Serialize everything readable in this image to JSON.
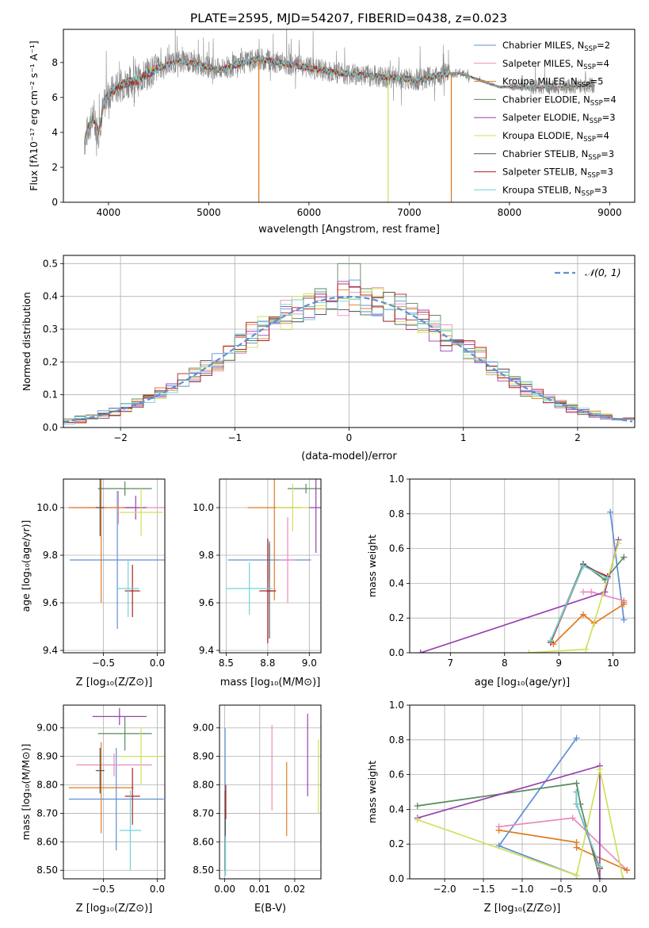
{
  "title": "PLATE=2595, MJD=54207, FIBERID=0438, z=0.023",
  "colors": {
    "chabrier_miles": "#5f8fd6",
    "salpeter_miles": "#e98bbb",
    "kroupa_miles": "#e07b22",
    "chabrier_elodie": "#5a8a5e",
    "salpeter_elodie": "#9a3fb0",
    "kroupa_elodie": "#cfe05a",
    "chabrier_stelib": "#555555",
    "salpeter_stelib": "#b51c1c",
    "kroupa_stelib": "#6fd3d8",
    "grid": "#b0b0b0",
    "normal": "#5f8fd6"
  },
  "chart_data": [
    {
      "id": "spectrum",
      "type": "line",
      "xlabel": "wavelength [Angstrom, rest frame]",
      "ylabel": "Flux [fλ10⁻¹⁷ erg cm⁻² s⁻¹ A⁻¹]",
      "xlim": [
        3550,
        9250
      ],
      "ylim": [
        0,
        9.9
      ],
      "xticks": [
        4000,
        5000,
        6000,
        7000,
        8000,
        9000
      ],
      "yticks": [
        0,
        2,
        4,
        6,
        8
      ],
      "grid": false,
      "legend_position": "top-right",
      "legend": [
        {
          "label": "Chabrier MILES, N",
          "sub": "SSP",
          "n": "=2",
          "color": "#5f8fd6"
        },
        {
          "label": "Salpeter MILES, N",
          "sub": "SSP",
          "n": "=4",
          "color": "#e98bbb"
        },
        {
          "label": "Kroupa MILES, N",
          "sub": "SSP",
          "n": "=5",
          "color": "#e07b22"
        },
        {
          "label": "Chabrier ELODIE, N",
          "sub": "SSP",
          "n": "=4",
          "color": "#5a8a5e"
        },
        {
          "label": "Salpeter ELODIE, N",
          "sub": "SSP",
          "n": "=3",
          "color": "#9a3fb0"
        },
        {
          "label": "Kroupa ELODIE, N",
          "sub": "SSP",
          "n": "=4",
          "color": "#cfe05a"
        },
        {
          "label": "Chabrier STELIB, N",
          "sub": "SSP",
          "n": "=3",
          "color": "#555555"
        },
        {
          "label": "Salpeter STELIB, N",
          "sub": "SSP",
          "n": "=3",
          "color": "#b51c1c"
        },
        {
          "label": "Kroupa STELIB, N",
          "sub": "SSP",
          "n": "=3",
          "color": "#6fd3d8"
        }
      ],
      "model_continuum": {
        "x": [
          3760,
          3800,
          3850,
          3900,
          3950,
          4000,
          4100,
          4200,
          4300,
          4400,
          4500,
          4700,
          4900,
          5100,
          5300,
          5500,
          5700,
          5900,
          6100,
          6300,
          6500,
          6700,
          6900,
          7100,
          7300,
          7500,
          7700,
          7900,
          8200,
          8500,
          8800
        ],
        "y": [
          3.4,
          4.3,
          4.8,
          4.0,
          5.5,
          6.2,
          6.6,
          6.9,
          7.0,
          7.4,
          7.7,
          8.1,
          7.9,
          7.6,
          7.9,
          8.2,
          8.0,
          7.8,
          7.6,
          7.4,
          7.3,
          7.2,
          7.1,
          7.0,
          7.3,
          7.4,
          7.0,
          6.6,
          6.6,
          6.6,
          6.7
        ]
      },
      "model_drops": [
        {
          "x": 5500,
          "color": "#e07b22"
        },
        {
          "x": 6790,
          "color": "#cfe05a"
        },
        {
          "x": 7420,
          "color": "#e07b22"
        }
      ]
    },
    {
      "id": "residuals",
      "type": "histogram",
      "xlabel": "(data-model)/error",
      "ylabel": "Normed distribution",
      "xlim": [
        -2.5,
        2.5
      ],
      "ylim": [
        0,
        0.525
      ],
      "xticks": [
        -2,
        -1,
        0,
        1,
        2
      ],
      "yticks": [
        0.0,
        0.1,
        0.2,
        0.3,
        0.4,
        0.5
      ],
      "grid": true,
      "legend_position": "top-right",
      "legend": [
        {
          "label": "𝒩(0, 1)",
          "style": "dashed"
        }
      ],
      "normal_curve": {
        "mean": 0,
        "sigma": 1
      }
    },
    {
      "id": "age_vs_Z",
      "type": "errorbar",
      "xlabel": "Z [log₁₀(Z/Z⊙)]",
      "ylabel": "age  [log₁₀(age/yr)]",
      "xlim": [
        -0.87,
        0.07
      ],
      "ylim": [
        9.39,
        10.12
      ],
      "xticks": [
        -0.5,
        0.0
      ],
      "yticks": [
        9.4,
        9.6,
        9.8,
        10.0
      ],
      "points": [
        {
          "model": "chabrier_miles",
          "x": -0.37,
          "y": 9.78,
          "xerr": 0.44,
          "yerr": 0.29
        },
        {
          "model": "salpeter_miles",
          "x": -0.36,
          "y": 10.0,
          "xerr": 0.46,
          "yerr": 0.07
        },
        {
          "model": "kroupa_miles",
          "x": -0.52,
          "y": 10.0,
          "xerr": 0.3,
          "yerr": 0.4
        },
        {
          "model": "chabrier_elodie",
          "x": -0.3,
          "y": 10.08,
          "xerr": 0.25,
          "yerr": 0.03
        },
        {
          "model": "salpeter_elodie",
          "x": -0.2,
          "y": 10.0,
          "xerr": 0.1,
          "yerr": 0.05
        },
        {
          "model": "kroupa_elodie",
          "x": -0.15,
          "y": 9.98,
          "xerr": 0.2,
          "yerr": 0.1
        },
        {
          "model": "chabrier_stelib",
          "x": -0.53,
          "y": 10.0,
          "xerr": 0.04,
          "yerr": 0.12
        },
        {
          "model": "salpeter_stelib",
          "x": -0.23,
          "y": 9.65,
          "xerr": 0.07,
          "yerr": 0.11
        },
        {
          "model": "kroupa_stelib",
          "x": -0.27,
          "y": 9.66,
          "xerr": 0.1,
          "yerr": 0.12
        }
      ]
    },
    {
      "id": "age_vs_mass",
      "type": "errorbar",
      "xlabel": "mass [log₁₀(M/M⊙)]",
      "ylabel": "",
      "xlim": [
        8.46,
        9.07
      ],
      "ylim": [
        9.39,
        10.12
      ],
      "xticks": [
        8.5,
        8.75,
        9.0
      ],
      "yticks": [
        9.4,
        9.6,
        9.8,
        10.0
      ],
      "points": [
        {
          "model": "chabrier_miles",
          "x": 8.76,
          "y": 9.78,
          "xerr": 0.25,
          "yerr": 0.08
        },
        {
          "model": "salpeter_miles",
          "x": 8.87,
          "y": 9.78,
          "xerr": 0.05,
          "yerr": 0.18
        },
        {
          "model": "kroupa_miles",
          "x": 8.79,
          "y": 10.0,
          "xerr": 0.16,
          "yerr": 0.39
        },
        {
          "model": "chabrier_elodie",
          "x": 8.98,
          "y": 10.08,
          "xerr": 0.11,
          "yerr": 0.02
        },
        {
          "model": "salpeter_elodie",
          "x": 9.04,
          "y": 10.0,
          "xerr": 0.05,
          "yerr": 0.19
        },
        {
          "model": "kroupa_elodie",
          "x": 8.9,
          "y": 10.0,
          "xerr": 0.1,
          "yerr": 0.1
        },
        {
          "model": "chabrier_stelib",
          "x": 8.76,
          "y": 9.65,
          "xerr": 0.02,
          "yerr": 0.2
        },
        {
          "model": "salpeter_stelib",
          "x": 8.75,
          "y": 9.65,
          "xerr": 0.05,
          "yerr": 0.22
        },
        {
          "model": "kroupa_stelib",
          "x": 8.64,
          "y": 9.66,
          "xerr": 0.14,
          "yerr": 0.11
        }
      ]
    },
    {
      "id": "weight_vs_age",
      "type": "line",
      "xlabel": "age  [log₁₀(age/yr)]",
      "ylabel": "mass weight",
      "xlim": [
        6.25,
        10.4
      ],
      "ylim": [
        0,
        1.0
      ],
      "xticks": [
        7,
        8,
        9,
        10
      ],
      "yticks": [
        0.0,
        0.2,
        0.4,
        0.6,
        0.8,
        1.0
      ],
      "grid": true,
      "series": [
        {
          "model": "chabrier_miles",
          "x": [
            9.95,
            10.2
          ],
          "y": [
            0.81,
            0.19
          ]
        },
        {
          "model": "salpeter_miles",
          "x": [
            9.45,
            9.6,
            10.2
          ],
          "y": [
            0.35,
            0.35,
            0.3
          ]
        },
        {
          "model": "kroupa_miles",
          "x": [
            8.9,
            9.45,
            9.65,
            10.2,
            10.2
          ],
          "y": [
            0.05,
            0.22,
            0.17,
            0.28,
            0.29
          ]
        },
        {
          "model": "chabrier_elodie",
          "x": [
            8.85,
            9.45,
            9.85,
            10.2
          ],
          "y": [
            0.07,
            0.51,
            0.42,
            0.55
          ]
        },
        {
          "model": "salpeter_elodie",
          "x": [
            6.45,
            9.85,
            10.1
          ],
          "y": [
            0.0,
            0.35,
            0.65
          ]
        },
        {
          "model": "kroupa_elodie",
          "x": [
            8.45,
            9.5,
            10.1
          ],
          "y": [
            0.0,
            0.02,
            0.63
          ]
        },
        {
          "model": "chabrier_stelib",
          "x": [
            8.85,
            9.45,
            9.9
          ],
          "y": [
            0.06,
            0.51,
            0.43
          ]
        },
        {
          "model": "salpeter_stelib",
          "x": [
            8.85,
            9.45,
            9.9
          ],
          "y": [
            0.06,
            0.5,
            0.44
          ]
        },
        {
          "model": "kroupa_stelib",
          "x": [
            8.85,
            9.45,
            9.9
          ],
          "y": [
            0.07,
            0.5,
            0.43
          ]
        }
      ]
    },
    {
      "id": "mass_vs_Z",
      "type": "errorbar",
      "xlabel": "Z [log₁₀(Z/Z⊙)]",
      "ylabel": "mass [log₁₀(M/M⊙)]",
      "xlim": [
        -0.87,
        0.07
      ],
      "ylim": [
        8.47,
        9.08
      ],
      "xticks": [
        -0.5,
        0.0
      ],
      "yticks": [
        8.5,
        8.6,
        8.7,
        8.8,
        8.9,
        9.0
      ],
      "points": [
        {
          "model": "chabrier_miles",
          "x": -0.38,
          "y": 8.75,
          "xerr": 0.44,
          "yerr": 0.18
        },
        {
          "model": "salpeter_miles",
          "x": -0.4,
          "y": 8.87,
          "xerr": 0.35,
          "yerr": 0.04
        },
        {
          "model": "kroupa_miles",
          "x": -0.52,
          "y": 8.79,
          "xerr": 0.3,
          "yerr": 0.16
        },
        {
          "model": "chabrier_elodie",
          "x": -0.3,
          "y": 8.98,
          "xerr": 0.25,
          "yerr": 0.06
        },
        {
          "model": "salpeter_elodie",
          "x": -0.35,
          "y": 9.04,
          "xerr": 0.25,
          "yerr": 0.03
        },
        {
          "model": "kroupa_elodie",
          "x": -0.15,
          "y": 8.9,
          "xerr": 0.2,
          "yerr": 0.1
        },
        {
          "model": "chabrier_stelib",
          "x": -0.53,
          "y": 8.85,
          "xerr": 0.04,
          "yerr": 0.08
        },
        {
          "model": "salpeter_stelib",
          "x": -0.23,
          "y": 8.76,
          "xerr": 0.07,
          "yerr": 0.1
        },
        {
          "model": "kroupa_stelib",
          "x": -0.25,
          "y": 8.64,
          "xerr": 0.1,
          "yerr": 0.14
        }
      ]
    },
    {
      "id": "mass_vs_ebv",
      "type": "errorbar",
      "xlabel": "E(B-V)",
      "ylabel": "",
      "xlim": [
        -0.0015,
        0.0275
      ],
      "ylim": [
        8.47,
        9.08
      ],
      "xticks": [
        0.0,
        0.01,
        0.02
      ],
      "yticks": [
        8.5,
        8.6,
        8.7,
        8.8,
        8.9,
        9.0
      ],
      "points": [
        {
          "model": "chabrier_miles",
          "x": 0.0001,
          "y": 8.75,
          "xerr": 0,
          "yerr": 0.25
        },
        {
          "model": "salpeter_miles",
          "x": 0.0135,
          "y": 8.86,
          "xerr": 0,
          "yerr": 0.15
        },
        {
          "model": "kroupa_miles",
          "x": 0.0177,
          "y": 8.75,
          "xerr": 0,
          "yerr": 0.13
        },
        {
          "model": "chabrier_elodie",
          "x": 0.0002,
          "y": 8.6,
          "xerr": 0,
          "yerr": 0.12
        },
        {
          "model": "salpeter_elodie",
          "x": 0.0237,
          "y": 8.905,
          "xerr": 0,
          "yerr": 0.145
        },
        {
          "model": "kroupa_elodie",
          "x": 0.0268,
          "y": 8.83,
          "xerr": 0,
          "yerr": 0.13
        },
        {
          "model": "chabrier_stelib",
          "x": 0.0001,
          "y": 8.64,
          "xerr": 0,
          "yerr": 0.14
        },
        {
          "model": "salpeter_stelib",
          "x": 0.0003,
          "y": 8.74,
          "xerr": 0,
          "yerr": 0.06
        },
        {
          "model": "kroupa_stelib",
          "x": 0.0002,
          "y": 8.55,
          "xerr": 0,
          "yerr": 0.07
        }
      ]
    },
    {
      "id": "weight_vs_Z",
      "type": "line",
      "xlabel": "Z [log₁₀(Z/Z⊙)]",
      "ylabel": "mass weight",
      "xlim": [
        -2.45,
        0.45
      ],
      "ylim": [
        0,
        1.0
      ],
      "xticks": [
        -2.0,
        -1.5,
        -1.0,
        -0.5,
        0.0
      ],
      "yticks": [
        0.0,
        0.2,
        0.4,
        0.6,
        0.8,
        1.0
      ],
      "grid": true,
      "series": [
        {
          "model": "chabrier_miles",
          "x": [
            -0.3,
            -1.3,
            -0.3
          ],
          "y": [
            0.81,
            0.19,
            0.02
          ]
        },
        {
          "model": "salpeter_miles",
          "x": [
            -1.3,
            -0.35,
            0.35
          ],
          "y": [
            0.3,
            0.35,
            0.05
          ]
        },
        {
          "model": "kroupa_miles",
          "x": [
            -1.3,
            -0.3,
            -0.3,
            0.35
          ],
          "y": [
            0.28,
            0.21,
            0.18,
            0.05
          ]
        },
        {
          "model": "chabrier_elodie",
          "x": [
            -2.35,
            -0.3,
            -0.25,
            0.0
          ],
          "y": [
            0.42,
            0.55,
            0.43,
            0.0
          ]
        },
        {
          "model": "salpeter_elodie",
          "x": [
            -2.35,
            0.0,
            0.0
          ],
          "y": [
            0.35,
            0.65,
            0.0
          ]
        },
        {
          "model": "kroupa_elodie",
          "x": [
            -2.35,
            -0.3,
            0.0,
            0.3
          ],
          "y": [
            0.34,
            0.02,
            0.63,
            0.0
          ]
        },
        {
          "model": "chabrier_stelib",
          "x": [
            -0.3,
            -0.3,
            0.0
          ],
          "y": [
            0.5,
            0.43,
            0.06
          ]
        },
        {
          "model": "salpeter_stelib",
          "x": [
            -0.3,
            -0.3,
            0.0
          ],
          "y": [
            0.5,
            0.43,
            0.06
          ]
        },
        {
          "model": "kroupa_stelib",
          "x": [
            -0.3,
            -0.3,
            0.0
          ],
          "y": [
            0.5,
            0.43,
            0.07
          ]
        }
      ]
    }
  ]
}
